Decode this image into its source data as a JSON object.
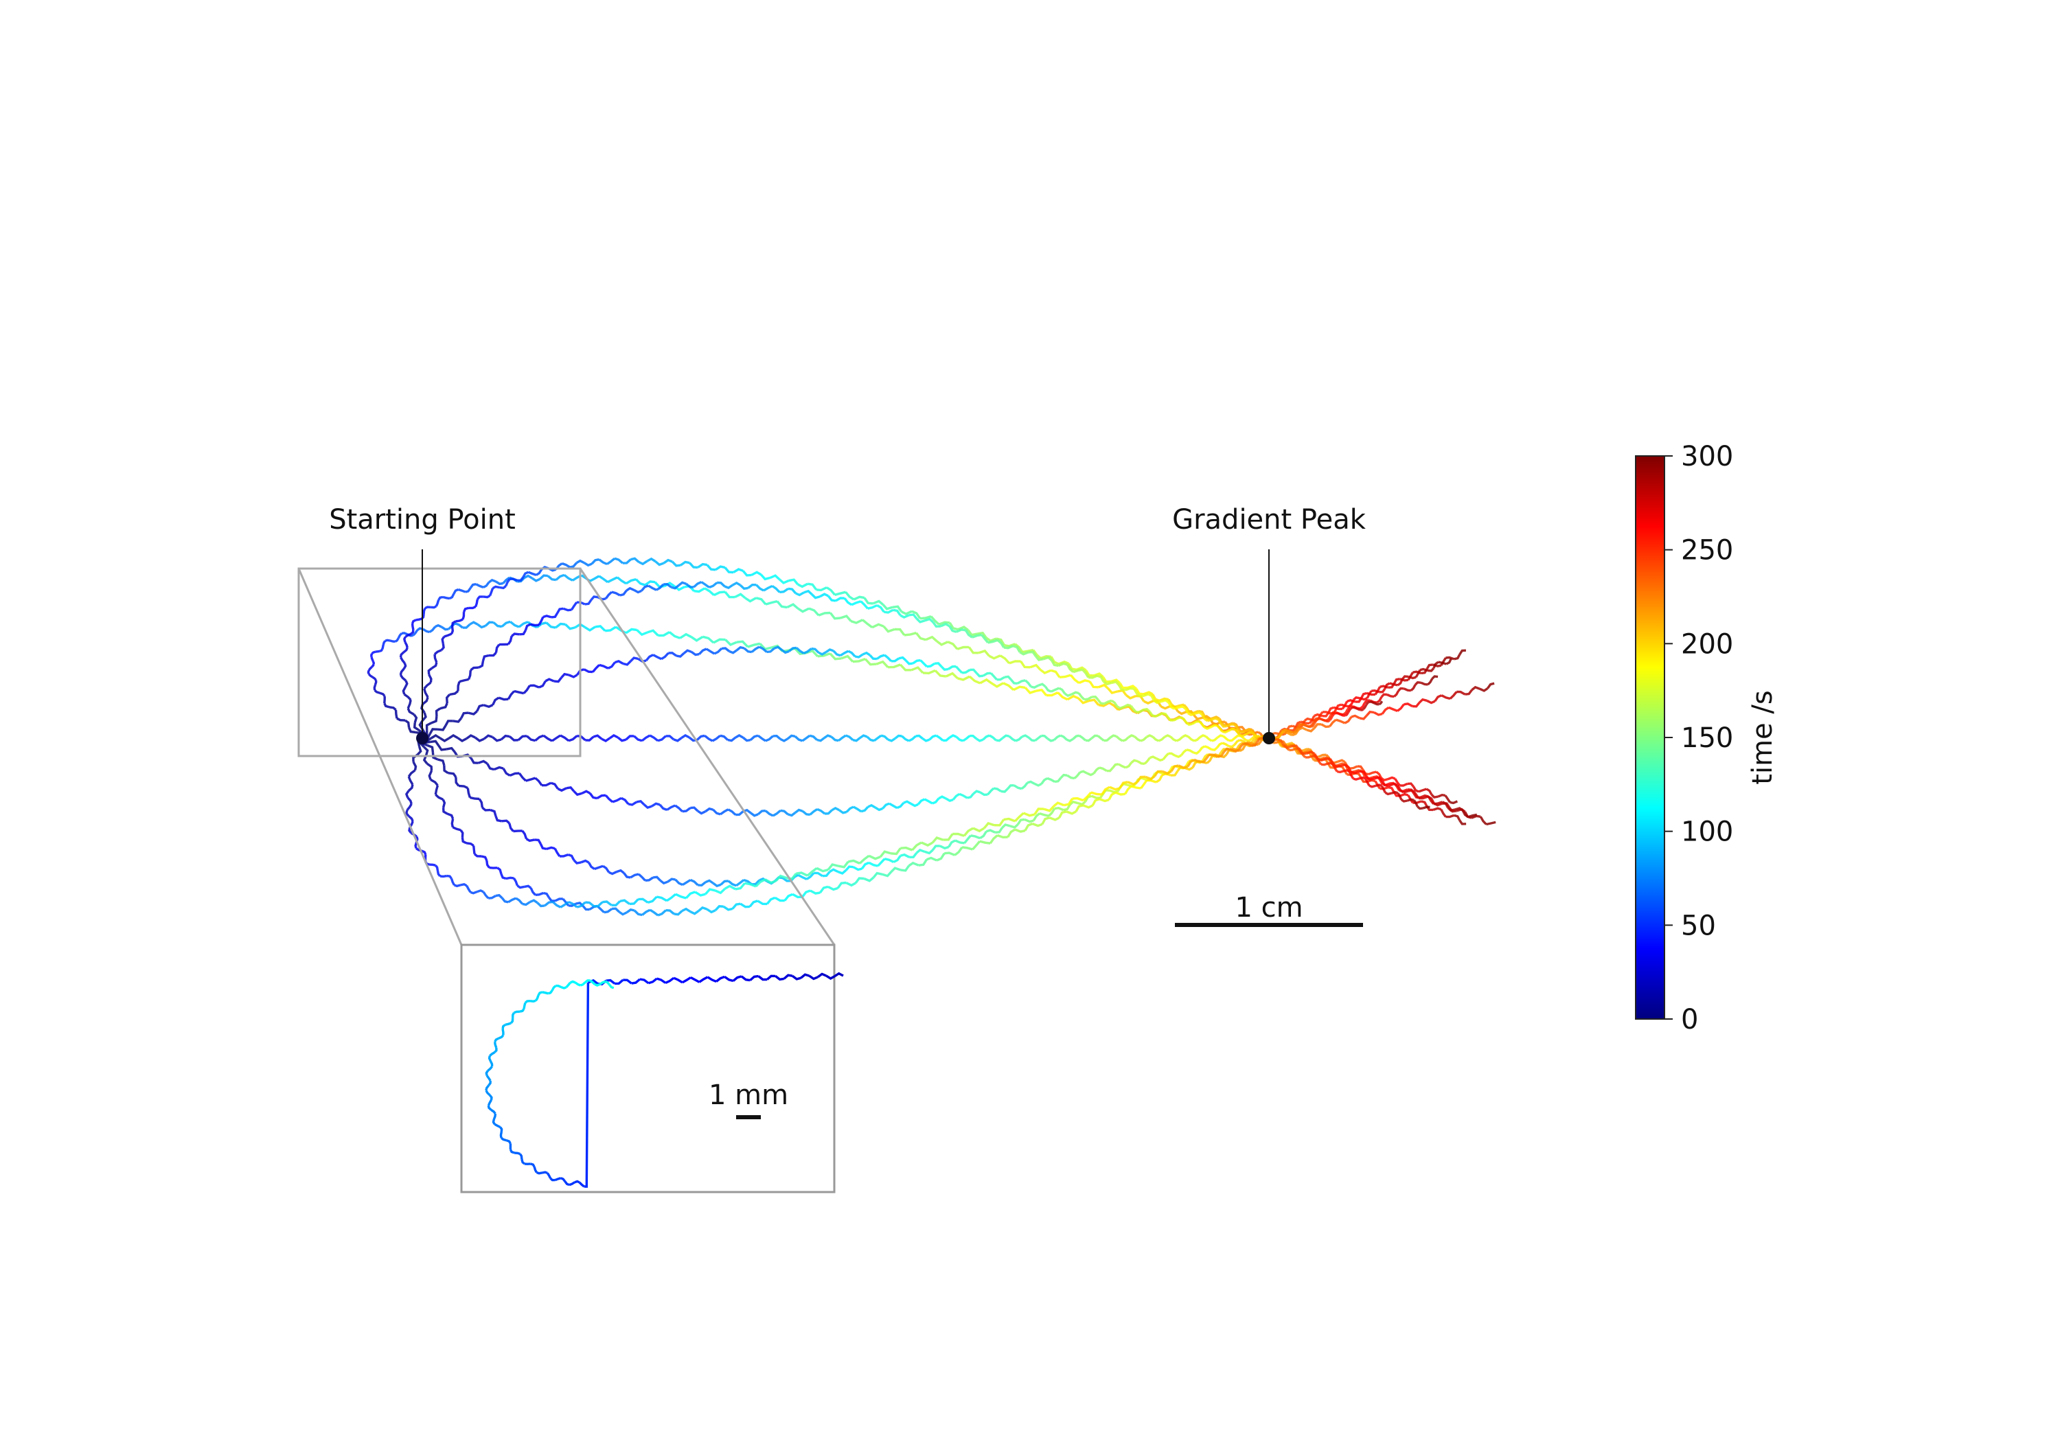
{
  "chart_data": {
    "type": "line",
    "title": "",
    "xlabel": "",
    "ylabel": "",
    "grid": false,
    "annotations": {
      "start": "Starting Point",
      "peak": "Gradient Peak"
    },
    "scalebars": {
      "main": "1 cm",
      "inset": "1 mm"
    },
    "start_point": [
      0,
      0
    ],
    "peak_point": [
      4.5,
      0
    ],
    "colorbar": {
      "label": "time /s",
      "colormap": "jet",
      "min": 0,
      "max": 300,
      "ticks": [
        "0",
        "50",
        "100",
        "150",
        "200",
        "250",
        "300"
      ]
    },
    "series": [
      {
        "start_angle_deg": 140,
        "tip": [
          5.55,
          0.46
        ],
        "arrival_time_s": 240
      },
      {
        "start_angle_deg": 115,
        "tip": [
          5.47,
          0.42
        ],
        "arrival_time_s": 235
      },
      {
        "start_angle_deg": 90,
        "tip": [
          5.4,
          0.32
        ],
        "arrival_time_s": 225
      },
      {
        "start_angle_deg": 60,
        "tip": [
          5.7,
          0.28
        ],
        "arrival_time_s": 215
      },
      {
        "start_angle_deg": 30,
        "tip": [
          5.1,
          0.2
        ],
        "arrival_time_s": 205
      },
      {
        "start_angle_deg": 0,
        "tip": [
          5.5,
          -0.34
        ],
        "arrival_time_s": 200
      },
      {
        "start_angle_deg": -25,
        "tip": [
          5.55,
          -0.45
        ],
        "arrival_time_s": 205
      },
      {
        "start_angle_deg": -55,
        "tip": [
          5.6,
          -0.42
        ],
        "arrival_time_s": 215
      },
      {
        "start_angle_deg": -80,
        "tip": [
          5.35,
          -0.38
        ],
        "arrival_time_s": 225
      },
      {
        "start_angle_deg": -110,
        "tip": [
          5.7,
          -0.46
        ],
        "arrival_time_s": 235
      }
    ]
  },
  "colors": {
    "inset_frame": "#aaaaaa",
    "marker": "#111111"
  }
}
